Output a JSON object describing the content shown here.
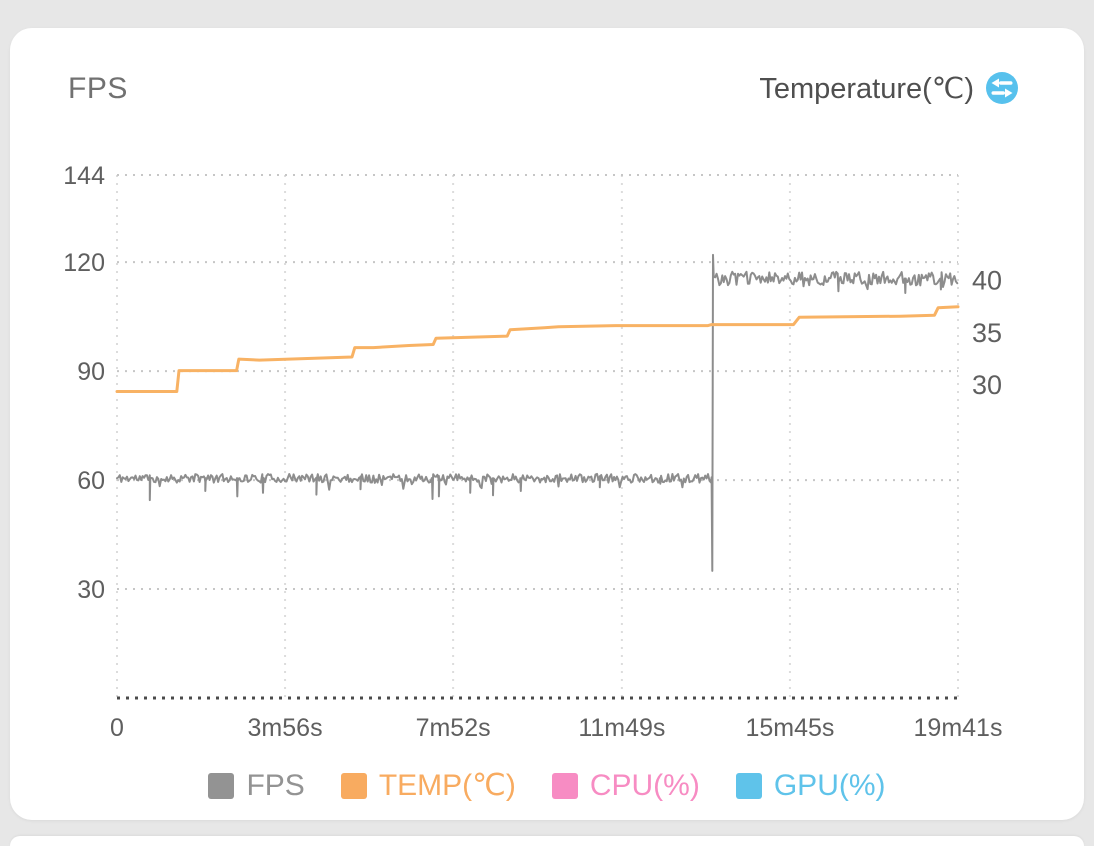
{
  "header": {
    "left_label": "FPS",
    "right_label": "Temperature(℃)",
    "right_icon": "temperature-switch-icon",
    "icon_color": "#57c1ed"
  },
  "legend": [
    {
      "label": "FPS",
      "color": "#939393"
    },
    {
      "label": "TEMP(℃)",
      "color": "#f8ab60"
    },
    {
      "label": "CPU(%)",
      "color": "#f78cc3"
    },
    {
      "label": "GPU(%)",
      "color": "#5fc3ea"
    }
  ],
  "chart_data": {
    "type": "line",
    "title": "",
    "grid": true,
    "legend_position": "bottom",
    "x_axis": {
      "unit": "time",
      "range_s": [
        0,
        1181
      ],
      "ticks": [
        {
          "t": 0,
          "label": "0"
        },
        {
          "t": 236,
          "label": "3m56s"
        },
        {
          "t": 472,
          "label": "7m52s"
        },
        {
          "t": 709,
          "label": "11m49s"
        },
        {
          "t": 945,
          "label": "15m45s"
        },
        {
          "t": 1181,
          "label": "19m41s"
        }
      ]
    },
    "left_axis": {
      "name": "FPS",
      "range": [
        0,
        144
      ],
      "ticks": [
        144,
        120,
        90,
        60,
        30
      ]
    },
    "right_axis": {
      "name": "Temperature(℃)",
      "range": [
        0,
        50
      ],
      "ticks": [
        40,
        35,
        30
      ]
    },
    "series": [
      {
        "name": "FPS",
        "color": "#8d8d8d",
        "width": 2,
        "kind": "noisy",
        "seed": 11,
        "sample_step_s": 2,
        "segments": [
          {
            "t0": 0,
            "t1": 834,
            "base": 60.5,
            "noise": 1.2
          },
          {
            "t0": 838,
            "t1": 1181,
            "base": 115.5,
            "noise": 1.9
          }
        ],
        "dips": [
          [
            46,
            54.5
          ],
          [
            124,
            57
          ],
          [
            169,
            55.5
          ],
          [
            205,
            56.5
          ],
          [
            280,
            56
          ],
          [
            342,
            57.5
          ],
          [
            443,
            54.8
          ],
          [
            452,
            55.5
          ],
          [
            496,
            56.5
          ],
          [
            528,
            55.8
          ],
          [
            567,
            57
          ],
          [
            678,
            58
          ],
          [
            763,
            59
          ],
          [
            1013,
            112
          ],
          [
            1107,
            111.5
          ],
          [
            1157,
            112.5
          ]
        ],
        "spike": {
          "t": 836,
          "low": 35,
          "high": 122
        }
      },
      {
        "name": "TEMP(℃)",
        "color": "#f8b264",
        "width": 3,
        "kind": "line",
        "axis": "right",
        "points": [
          [
            0,
            29.3
          ],
          [
            84,
            29.3
          ],
          [
            87,
            31.3
          ],
          [
            168,
            31.3
          ],
          [
            171,
            32.4
          ],
          [
            200,
            32.3
          ],
          [
            330,
            32.6
          ],
          [
            334,
            33.5
          ],
          [
            360,
            33.5
          ],
          [
            410,
            33.7
          ],
          [
            444,
            33.8
          ],
          [
            448,
            34.4
          ],
          [
            548,
            34.6
          ],
          [
            552,
            35.2
          ],
          [
            600,
            35.4
          ],
          [
            620,
            35.5
          ],
          [
            700,
            35.6
          ],
          [
            830,
            35.6
          ],
          [
            835,
            35.7
          ],
          [
            950,
            35.7
          ],
          [
            958,
            36.4
          ],
          [
            1100,
            36.5
          ],
          [
            1148,
            36.6
          ],
          [
            1153,
            37.3
          ],
          [
            1181,
            37.4
          ]
        ]
      }
    ]
  }
}
